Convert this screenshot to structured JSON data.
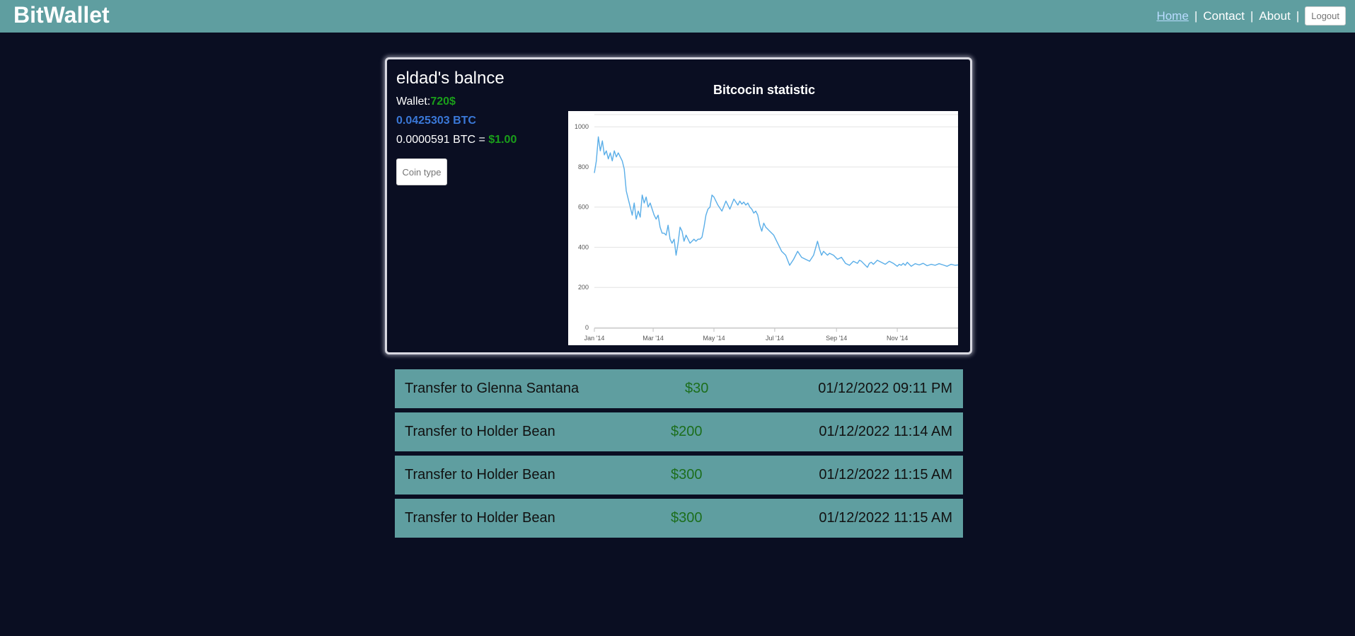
{
  "app": {
    "logo": "BitWallet"
  },
  "nav": {
    "items": [
      {
        "label": "Home",
        "active": true
      },
      {
        "label": "Contact",
        "active": false
      },
      {
        "label": "About",
        "active": false
      }
    ],
    "separator": "|",
    "logout_label": "Logout"
  },
  "balance": {
    "title": "eldad's balnce",
    "wallet_label": "Wallet:",
    "wallet_value": "720$",
    "btc_value": "0.0425303 BTC",
    "rate_prefix": "0.0000591 BTC = ",
    "rate_value": "$1.00",
    "coin_button_label": "Coin type"
  },
  "colors": {
    "header_bg": "#5f9ea0",
    "page_bg": "#0a0e22",
    "positive": "#1a9e1a",
    "btc": "#3a78d8",
    "line": "#5aaee8"
  },
  "chart_data": {
    "type": "line",
    "title": "Bitcocin statistic",
    "xlabel": "",
    "ylabel": "",
    "ylim": [
      0,
      1050
    ],
    "xlim": [
      0,
      365
    ],
    "grid": true,
    "y_ticks": [
      0,
      200,
      400,
      600,
      800,
      1000
    ],
    "x_ticks": [
      {
        "label": "Jan '14",
        "day": 0
      },
      {
        "label": "Mar '14",
        "day": 59
      },
      {
        "label": "May '14",
        "day": 120
      },
      {
        "label": "Jul '14",
        "day": 181
      },
      {
        "label": "Sep '14",
        "day": 243
      },
      {
        "label": "Nov '14",
        "day": 304
      }
    ],
    "series": [
      {
        "x": [
          0,
          2,
          4,
          6,
          8,
          10,
          12,
          14,
          16,
          18,
          20,
          22,
          24,
          26,
          28,
          30,
          32,
          34,
          36,
          38,
          40,
          42,
          44,
          46,
          48,
          50,
          52,
          54,
          56,
          58,
          60,
          62,
          64,
          66,
          68,
          70,
          72,
          74,
          76,
          78,
          80,
          82,
          84,
          86,
          88,
          90,
          92,
          94,
          96,
          98,
          100,
          102,
          104,
          106,
          108,
          110,
          112,
          114,
          116,
          118,
          120,
          124,
          128,
          132,
          136,
          140,
          144,
          146,
          148,
          150,
          152,
          154,
          156,
          158,
          160,
          162,
          164,
          166,
          168,
          170,
          172,
          174,
          176,
          178,
          180,
          184,
          188,
          192,
          196,
          200,
          204,
          208,
          212,
          216,
          220,
          224,
          226,
          228,
          230,
          232,
          234,
          236,
          240,
          244,
          248,
          252,
          256,
          260,
          264,
          266,
          268,
          270,
          272,
          274,
          276,
          278,
          280,
          284,
          288,
          292,
          296,
          300,
          304,
          306,
          308,
          310,
          312,
          314,
          318,
          322,
          326,
          330,
          334,
          338,
          342,
          346,
          350,
          354,
          358,
          362,
          365
        ],
        "values": [
          770,
          830,
          950,
          880,
          930,
          860,
          880,
          840,
          870,
          830,
          880,
          850,
          870,
          850,
          830,
          790,
          680,
          640,
          600,
          560,
          620,
          540,
          580,
          550,
          660,
          620,
          650,
          600,
          620,
          590,
          560,
          540,
          560,
          500,
          470,
          470,
          460,
          510,
          440,
          420,
          440,
          360,
          420,
          500,
          480,
          430,
          460,
          440,
          420,
          430,
          440,
          430,
          440,
          440,
          450,
          500,
          560,
          590,
          600,
          660,
          650,
          610,
          580,
          630,
          590,
          640,
          610,
          630,
          615,
          625,
          610,
          620,
          600,
          590,
          570,
          580,
          560,
          510,
          480,
          520,
          500,
          490,
          480,
          470,
          460,
          420,
          380,
          360,
          310,
          340,
          380,
          350,
          340,
          330,
          360,
          430,
          390,
          360,
          380,
          370,
          360,
          370,
          360,
          340,
          350,
          320,
          310,
          330,
          320,
          335,
          330,
          320,
          310,
          300,
          320,
          325,
          315,
          335,
          325,
          315,
          330,
          320,
          305,
          315,
          310,
          320,
          310,
          325,
          305,
          318,
          312,
          320,
          308,
          315,
          310,
          318,
          312,
          305,
          315,
          310,
          312
        ]
      }
    ]
  },
  "transactions": [
    {
      "label": "Transfer to Glenna Santana",
      "amount": "$30",
      "date": "01/12/2022 09:11 PM"
    },
    {
      "label": "Transfer to Holder Bean",
      "amount": "$200",
      "date": "01/12/2022 11:14 AM"
    },
    {
      "label": "Transfer to Holder Bean",
      "amount": "$300",
      "date": "01/12/2022 11:15 AM"
    },
    {
      "label": "Transfer to Holder Bean",
      "amount": "$300",
      "date": "01/12/2022 11:15 AM"
    }
  ]
}
